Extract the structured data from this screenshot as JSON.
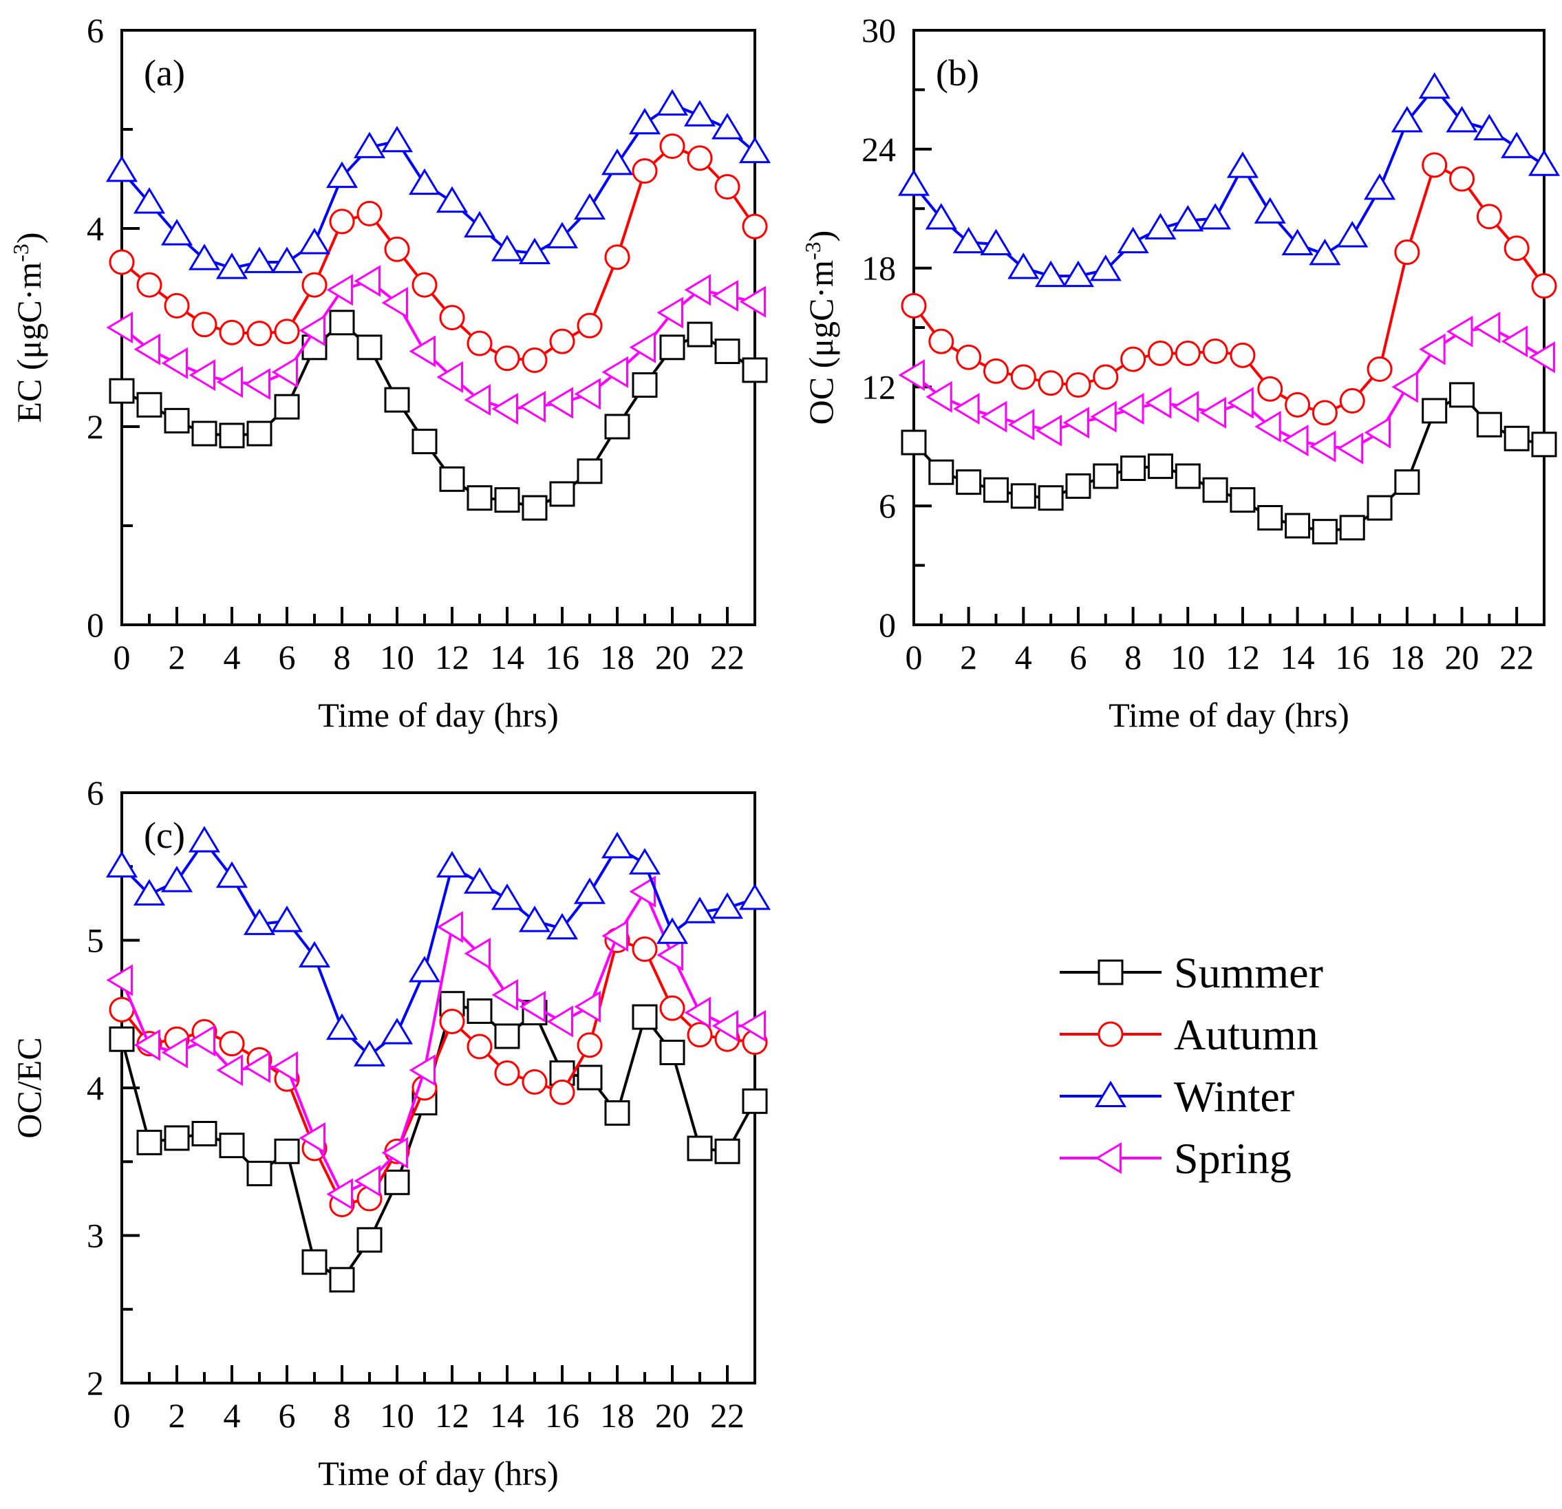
{
  "chart_data": [
    {
      "type": "line",
      "panel_label": "(a)",
      "title": "",
      "xlabel": "Time of day (hrs)",
      "ylabel_main": "EC (μgC·m",
      "ylabel_sup": "-3",
      "ylabel_close": ")",
      "xlim": [
        0,
        23
      ],
      "ylim": [
        0,
        6
      ],
      "xticks": [
        0,
        2,
        4,
        6,
        8,
        10,
        12,
        14,
        16,
        18,
        20,
        22
      ],
      "xtick_labels": [
        "0",
        "2",
        "4",
        "6",
        "8",
        "10",
        "12",
        "14",
        "16",
        "18",
        "20",
        "22"
      ],
      "yticks": [
        0,
        2,
        4,
        6
      ],
      "ytick_labels": [
        "0",
        "2",
        "4",
        "6"
      ],
      "grid": false,
      "x": [
        0,
        1,
        2,
        3,
        4,
        5,
        6,
        7,
        8,
        9,
        10,
        11,
        12,
        13,
        14,
        15,
        16,
        17,
        18,
        19,
        20,
        21,
        22,
        23
      ],
      "series": [
        {
          "name": "Summer",
          "values": [
            2.36,
            2.22,
            2.06,
            1.93,
            1.91,
            1.93,
            2.2,
            2.8,
            3.05,
            2.8,
            2.27,
            1.85,
            1.47,
            1.28,
            1.26,
            1.18,
            1.32,
            1.55,
            2.0,
            2.42,
            2.8,
            2.93,
            2.76,
            2.57
          ]
        },
        {
          "name": "Autumn",
          "values": [
            3.66,
            3.43,
            3.22,
            3.03,
            2.95,
            2.94,
            2.96,
            3.43,
            4.07,
            4.15,
            3.79,
            3.43,
            3.1,
            2.84,
            2.69,
            2.67,
            2.86,
            3.02,
            3.71,
            4.58,
            4.83,
            4.71,
            4.42,
            4.02
          ]
        },
        {
          "name": "Winter",
          "values": [
            4.58,
            4.26,
            3.94,
            3.69,
            3.6,
            3.66,
            3.66,
            3.85,
            4.52,
            4.82,
            4.88,
            4.45,
            4.27,
            4.02,
            3.78,
            3.75,
            3.91,
            4.2,
            4.65,
            5.06,
            5.25,
            5.14,
            5.01,
            4.77
          ]
        },
        {
          "name": "Spring",
          "values": [
            3.0,
            2.78,
            2.64,
            2.52,
            2.45,
            2.43,
            2.55,
            2.97,
            3.38,
            3.47,
            3.25,
            2.76,
            2.5,
            2.27,
            2.18,
            2.2,
            2.24,
            2.33,
            2.55,
            2.8,
            3.15,
            3.38,
            3.32,
            3.26
          ]
        }
      ]
    },
    {
      "type": "line",
      "panel_label": "(b)",
      "title": "",
      "xlabel": "Time of day (hrs)",
      "ylabel_main": "OC  (μgC·m",
      "ylabel_sup": "-3",
      "ylabel_close": ")",
      "xlim": [
        0,
        23
      ],
      "ylim": [
        0,
        30
      ],
      "xticks": [
        0,
        2,
        4,
        6,
        8,
        10,
        12,
        14,
        16,
        18,
        20,
        22
      ],
      "xtick_labels": [
        "0",
        "2",
        "4",
        "6",
        "8",
        "10",
        "12",
        "14",
        "16",
        "18",
        "20",
        "22"
      ],
      "yticks": [
        0,
        6,
        12,
        18,
        24,
        30
      ],
      "ytick_labels": [
        "0",
        "6",
        "12",
        "18",
        "24",
        "30"
      ],
      "grid": false,
      "x": [
        0,
        1,
        2,
        3,
        4,
        5,
        6,
        7,
        8,
        9,
        10,
        11,
        12,
        13,
        14,
        15,
        16,
        17,
        18,
        19,
        20,
        21,
        22,
        23
      ],
      "series": [
        {
          "name": "Summer",
          "values": [
            9.2,
            7.7,
            7.2,
            6.8,
            6.5,
            6.4,
            7.0,
            7.5,
            7.9,
            8.0,
            7.5,
            6.8,
            6.3,
            5.4,
            5.0,
            4.7,
            4.9,
            5.9,
            7.2,
            10.8,
            11.6,
            10.1,
            9.4,
            9.1
          ]
        },
        {
          "name": "Autumn",
          "values": [
            16.1,
            14.3,
            13.5,
            12.8,
            12.5,
            12.2,
            12.1,
            12.5,
            13.4,
            13.7,
            13.7,
            13.8,
            13.6,
            11.9,
            11.1,
            10.7,
            11.3,
            12.9,
            18.8,
            23.2,
            22.5,
            20.6,
            19.0,
            17.1
          ]
        },
        {
          "name": "Winter",
          "values": [
            22.2,
            20.5,
            19.3,
            19.2,
            18.0,
            17.6,
            17.6,
            17.9,
            19.3,
            20.0,
            20.4,
            20.5,
            23.1,
            20.8,
            19.2,
            18.7,
            19.6,
            22.0,
            25.4,
            27.1,
            25.4,
            25.0,
            24.1,
            23.2
          ]
        },
        {
          "name": "Spring",
          "values": [
            12.6,
            11.5,
            10.9,
            10.5,
            10.1,
            9.8,
            10.2,
            10.5,
            10.9,
            11.2,
            11.0,
            10.7,
            11.2,
            10.0,
            9.3,
            9.0,
            8.9,
            9.7,
            12.0,
            13.9,
            14.8,
            15.0,
            14.3,
            13.5
          ]
        }
      ]
    },
    {
      "type": "line",
      "panel_label": "(c)",
      "title": "",
      "xlabel": "Time of day (hrs)",
      "ylabel_main": "OC/EC",
      "ylabel_sup": "",
      "ylabel_close": "",
      "xlim": [
        0,
        23
      ],
      "ylim": [
        2,
        6
      ],
      "xticks": [
        0,
        2,
        4,
        6,
        8,
        10,
        12,
        14,
        16,
        18,
        20,
        22
      ],
      "xtick_labels": [
        "0",
        "2",
        "4",
        "6",
        "8",
        "10",
        "12",
        "14",
        "16",
        "18",
        "20",
        "22"
      ],
      "yticks": [
        2,
        3,
        4,
        5,
        6
      ],
      "ytick_labels": [
        "2",
        "3",
        "4",
        "5",
        "6"
      ],
      "grid": false,
      "x": [
        0,
        1,
        2,
        3,
        4,
        5,
        6,
        7,
        8,
        9,
        10,
        11,
        12,
        13,
        14,
        15,
        16,
        17,
        18,
        19,
        20,
        21,
        22,
        23
      ],
      "series": [
        {
          "name": "Summer",
          "values": [
            4.33,
            3.63,
            3.66,
            3.69,
            3.61,
            3.42,
            3.57,
            2.82,
            2.7,
            2.97,
            3.36,
            3.9,
            4.57,
            4.52,
            4.35,
            4.51,
            4.1,
            4.07,
            3.83,
            4.48,
            4.24,
            3.59,
            3.57,
            3.91
          ]
        },
        {
          "name": "Autumn",
          "values": [
            4.53,
            4.3,
            4.33,
            4.38,
            4.3,
            4.19,
            4.06,
            3.59,
            3.21,
            3.25,
            3.57,
            4.0,
            4.45,
            4.28,
            4.1,
            4.04,
            3.97,
            4.29,
            5.0,
            4.94,
            4.54,
            4.36,
            4.33,
            4.31
          ]
        },
        {
          "name": "Winter",
          "values": [
            5.5,
            5.31,
            5.4,
            5.67,
            5.43,
            5.11,
            5.13,
            4.89,
            4.4,
            4.22,
            4.37,
            4.79,
            5.5,
            5.39,
            5.28,
            5.13,
            5.08,
            5.32,
            5.63,
            5.52,
            5.05,
            5.19,
            5.22,
            5.28
          ]
        },
        {
          "name": "Spring",
          "values": [
            4.73,
            4.29,
            4.24,
            4.32,
            4.12,
            4.14,
            4.14,
            3.66,
            3.28,
            3.37,
            3.56,
            4.12,
            5.09,
            4.91,
            4.63,
            4.55,
            4.45,
            4.55,
            5.03,
            5.33,
            4.9,
            4.51,
            4.42,
            4.42
          ]
        }
      ]
    }
  ],
  "legend": {
    "entries": [
      {
        "name": "Summer",
        "color": "#000000",
        "marker": "square"
      },
      {
        "name": "Autumn",
        "color": "#ff0000",
        "marker": "circle"
      },
      {
        "name": "Winter",
        "color": "#0000ff",
        "marker": "triangle-up"
      },
      {
        "name": "Spring",
        "color": "#ff00ff",
        "marker": "triangle-left"
      }
    ]
  }
}
